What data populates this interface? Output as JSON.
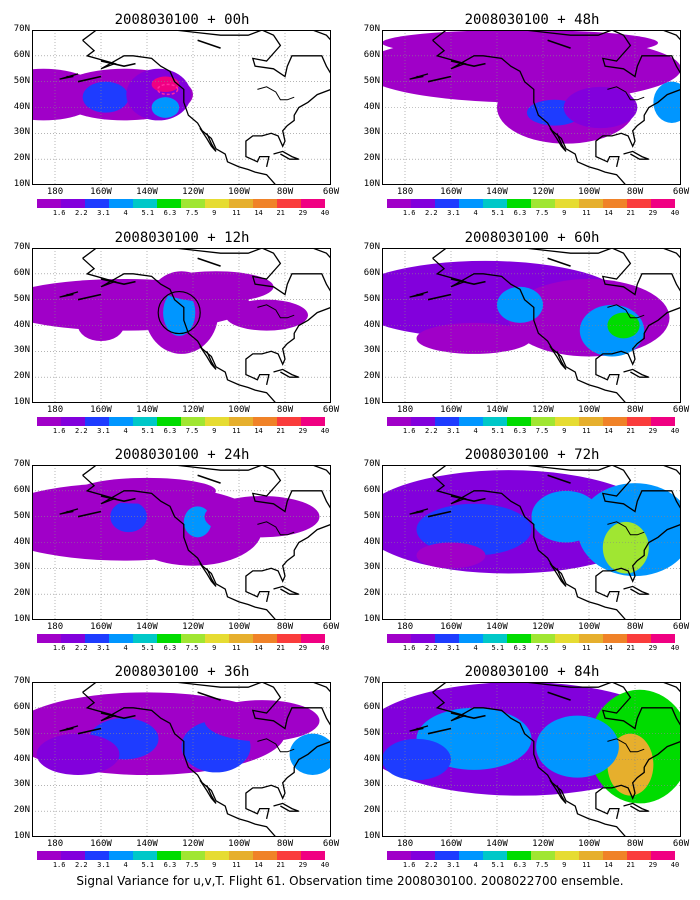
{
  "caption": "Signal Variance for u,v,T. Flight 61. Observation time 2008030100. 2008022700 ensemble.",
  "y_axis_labels": [
    "70N",
    "60N",
    "50N",
    "40N",
    "30N",
    "20N",
    "10N"
  ],
  "x_axis_labels": [
    "180",
    "160W",
    "140W",
    "120W",
    "100W",
    "80W",
    "60W"
  ],
  "colorbar": {
    "labels": [
      "1.6",
      "2.2",
      "3.1",
      "4",
      "5.1",
      "6.3",
      "7.5",
      "9",
      "11",
      "14",
      "21",
      "29",
      "40"
    ],
    "colors": [
      "#a000c8",
      "#8200dc",
      "#1e3cff",
      "#0096ff",
      "#00c8c8",
      "#00dc00",
      "#a0e632",
      "#e6dc32",
      "#e6af2d",
      "#f08228",
      "#fa3c3c",
      "#f00082"
    ]
  },
  "panels": [
    {
      "title": "2008030100 + 00h",
      "intensity": 0
    },
    {
      "title": "2008030100 + 48h",
      "intensity": 3
    },
    {
      "title": "2008030100 + 12h",
      "intensity": 1
    },
    {
      "title": "2008030100 + 60h",
      "intensity": 4
    },
    {
      "title": "2008030100 + 24h",
      "intensity": 2
    },
    {
      "title": "2008030100 + 72h",
      "intensity": 5
    },
    {
      "title": "2008030100 + 36h",
      "intensity": 2
    },
    {
      "title": "2008030100 + 84h",
      "intensity": 6
    }
  ]
}
